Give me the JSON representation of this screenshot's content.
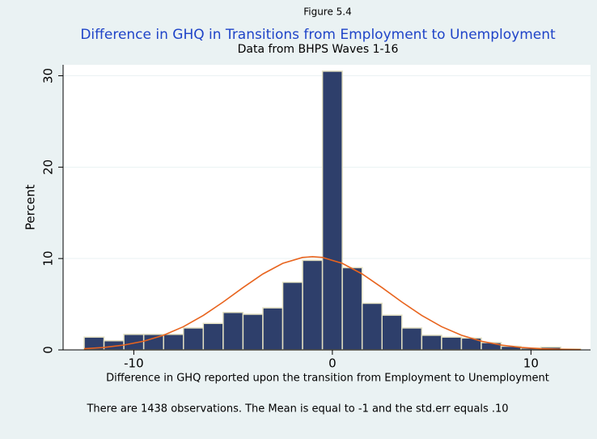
{
  "chart_data": {
    "type": "histogram",
    "figure_label": "Figure 5.4",
    "title": "Difference in GHQ in Transitions from Employment to Unemployment",
    "subtitle": "Data from BHPS Waves 1-16",
    "ylabel": "Percent",
    "xlabel": "Difference in GHQ reported upon the transition from Employment to Unemployment",
    "note": "There are 1438 observations. The Mean is equal to -1 and the std.err equals .10",
    "bins": [
      -12.5,
      -11.5,
      -10.5,
      -9.5,
      -8.5,
      -7.5,
      -6.5,
      -5.5,
      -4.5,
      -3.5,
      -2.5,
      -1.5,
      -0.5,
      0.5,
      1.5,
      2.5,
      3.5,
      4.5,
      5.5,
      6.5,
      7.5,
      8.5,
      9.5,
      10.5,
      11.5,
      12.5
    ],
    "values": [
      1.4,
      1.0,
      1.7,
      1.7,
      1.7,
      2.4,
      2.9,
      4.1,
      3.9,
      4.6,
      7.4,
      9.8,
      30.5,
      9.0,
      5.1,
      3.8,
      2.4,
      1.6,
      1.4,
      1.3,
      0.8,
      0.4,
      0.2,
      0.3,
      0.1
    ],
    "color": "#2e3f6b",
    "edge_color": "#e3e0c2",
    "density": {
      "color": "#e8641e",
      "x": [
        -12.5,
        -11.5,
        -10.5,
        -9.5,
        -8.5,
        -7.5,
        -6.5,
        -5.5,
        -4.5,
        -3.5,
        -2.5,
        -1.5,
        -1,
        -0.5,
        0.5,
        1.5,
        2.5,
        3.5,
        4.5,
        5.5,
        6.5,
        7.5,
        8.5,
        9.5,
        10.5,
        11.5,
        12.5
      ],
      "values": [
        0.13,
        0.27,
        0.53,
        0.95,
        1.61,
        2.54,
        3.77,
        5.24,
        6.82,
        8.31,
        9.47,
        10.12,
        10.2,
        10.12,
        9.47,
        8.31,
        6.82,
        5.24,
        3.77,
        2.54,
        1.61,
        0.95,
        0.53,
        0.27,
        0.13,
        0.06,
        0.03
      ]
    },
    "xlim": [
      -13.56,
      13.0
    ],
    "xticks": [
      -10,
      0,
      10
    ],
    "ylim": [
      0,
      31.2
    ],
    "yticks": [
      0,
      10,
      20,
      30
    ],
    "grid": true
  }
}
